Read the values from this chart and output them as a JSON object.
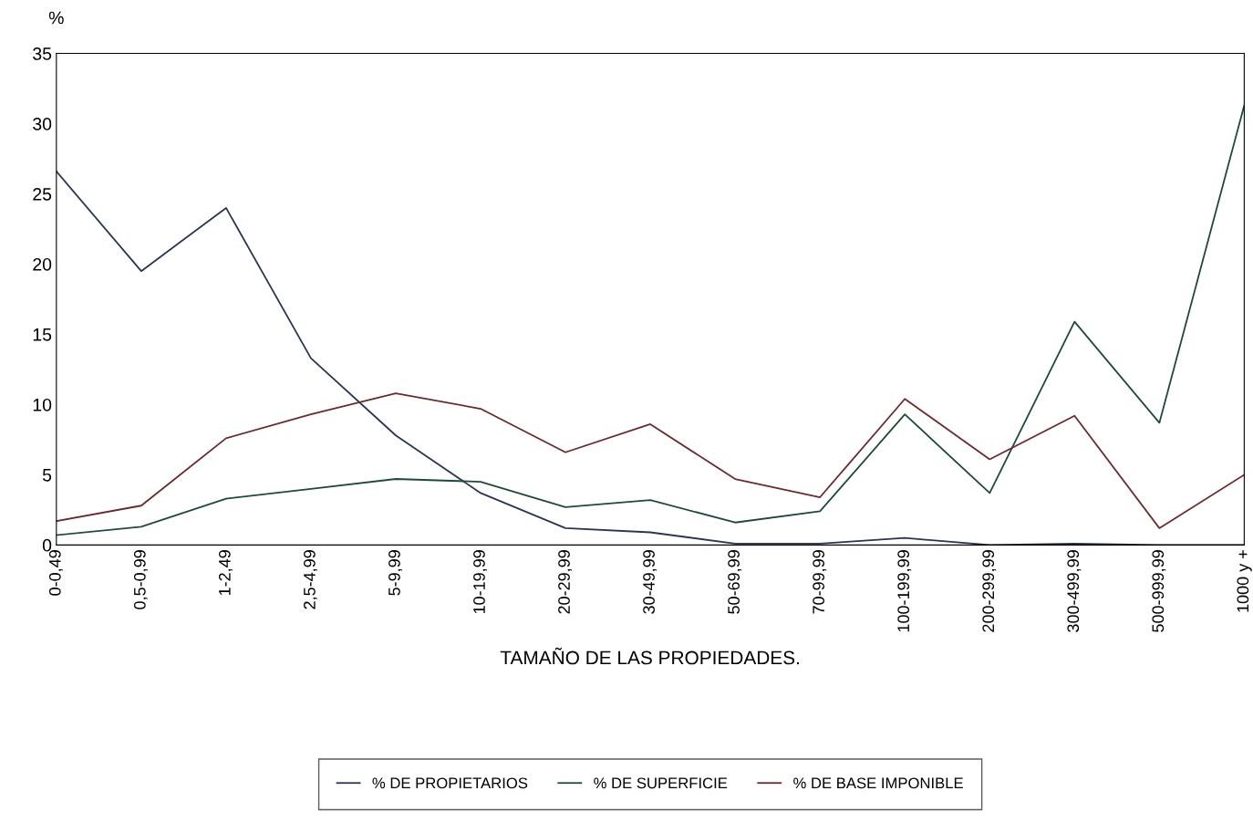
{
  "chart_data": {
    "type": "line",
    "ylabel": "%",
    "xlabel": "TAMAÑO DE LAS PROPIEDADES.",
    "categories": [
      "0-0,49",
      "0,5-0,99",
      "1-2,49",
      "2,5-4,99",
      "5-9,99",
      "10-19,99",
      "20-29,99",
      "30-49,99",
      "50-69,99",
      "70-99,99",
      "100-199,99",
      "200-299,99",
      "300-499,99",
      "500-999,99",
      "1000 y +"
    ],
    "series": [
      {
        "name": "% DE PROPIETARIOS",
        "color": "#2a3550",
        "values": [
          26.6,
          19.5,
          24.0,
          13.3,
          7.8,
          3.7,
          1.2,
          0.9,
          0.1,
          0.1,
          0.5,
          0,
          0.1,
          0,
          0
        ]
      },
      {
        "name": "% DE SUPERFICIE",
        "color": "#1f4a3a",
        "values": [
          0.7,
          1.3,
          3.3,
          4.0,
          4.7,
          4.5,
          2.7,
          3.2,
          1.6,
          2.4,
          9.3,
          3.7,
          15.9,
          8.7,
          31.3
        ]
      },
      {
        "name": "% DE BASE IMPONIBLE",
        "color": "#6a2a30",
        "values": [
          1.7,
          2.8,
          7.6,
          9.3,
          10.8,
          9.7,
          6.6,
          8.6,
          4.7,
          3.4,
          10.4,
          6.1,
          9.2,
          1.2,
          5.0
        ]
      }
    ],
    "ylim": [
      0,
      35
    ],
    "yticks": [
      0,
      5,
      10,
      15,
      20,
      25,
      30,
      35
    ],
    "grid": false,
    "legend": "bottom",
    "marker": "none",
    "line_style": "solid"
  }
}
